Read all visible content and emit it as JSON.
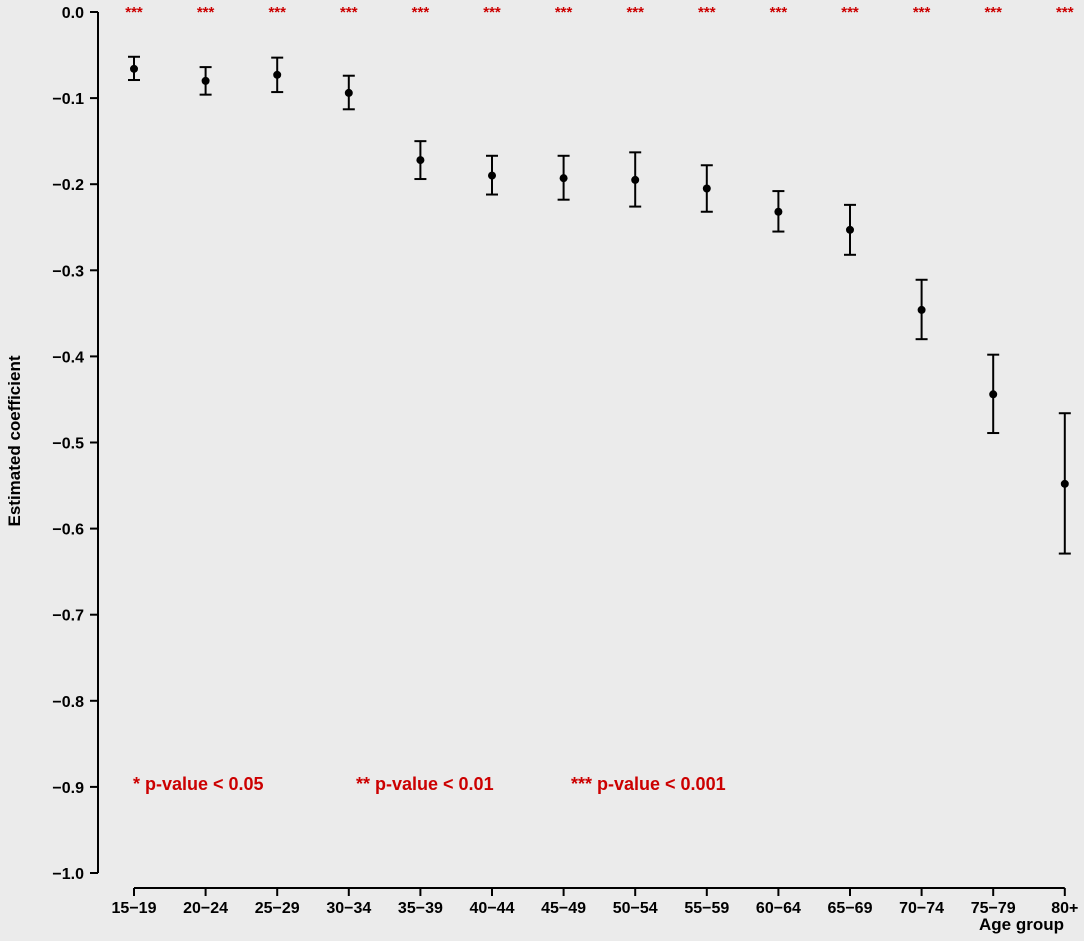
{
  "colors": {
    "background": "#ffffff",
    "panel": "#ebebeb",
    "ink": "#000000",
    "significance": "#cc0000"
  },
  "chart_data": {
    "type": "scatter",
    "subtype": "point-estimate-with-error-bars",
    "title": "",
    "xlabel": "Age group",
    "ylabel": "Estimated coefficient",
    "ylim": [
      -1.0,
      0.0
    ],
    "yticks": [
      0.0,
      -0.1,
      -0.2,
      -0.3,
      -0.4,
      -0.5,
      -0.6,
      -0.7,
      -0.8,
      -0.9,
      -1.0
    ],
    "ytick_labels": [
      "0.0",
      "−0.1",
      "−0.2",
      "−0.3",
      "−0.4",
      "−0.5",
      "−0.6",
      "−0.7",
      "−0.8",
      "−0.9",
      "−1.0"
    ],
    "grid": false,
    "categories": [
      "15−19",
      "20−24",
      "25−29",
      "30−34",
      "35−39",
      "40−44",
      "45−49",
      "50−54",
      "55−59",
      "60−64",
      "65−69",
      "70−74",
      "75−79",
      "80+"
    ],
    "estimates": [
      -0.066,
      -0.08,
      -0.073,
      -0.094,
      -0.172,
      -0.19,
      -0.193,
      -0.195,
      -0.205,
      -0.232,
      -0.253,
      -0.346,
      -0.444,
      -0.548
    ],
    "ci_lower": [
      -0.079,
      -0.096,
      -0.093,
      -0.113,
      -0.194,
      -0.212,
      -0.218,
      -0.226,
      -0.232,
      -0.255,
      -0.282,
      -0.38,
      -0.489,
      -0.629
    ],
    "ci_upper": [
      -0.052,
      -0.064,
      -0.053,
      -0.074,
      -0.15,
      -0.167,
      -0.167,
      -0.163,
      -0.178,
      -0.208,
      -0.224,
      -0.311,
      -0.398,
      -0.466
    ],
    "significance": [
      "***",
      "***",
      "***",
      "***",
      "***",
      "***",
      "***",
      "***",
      "***",
      "***",
      "***",
      "***",
      "***",
      "***"
    ],
    "legend": [
      "* p-value < 0.05",
      "** p-value < 0.01",
      "*** p-value < 0.001"
    ]
  }
}
